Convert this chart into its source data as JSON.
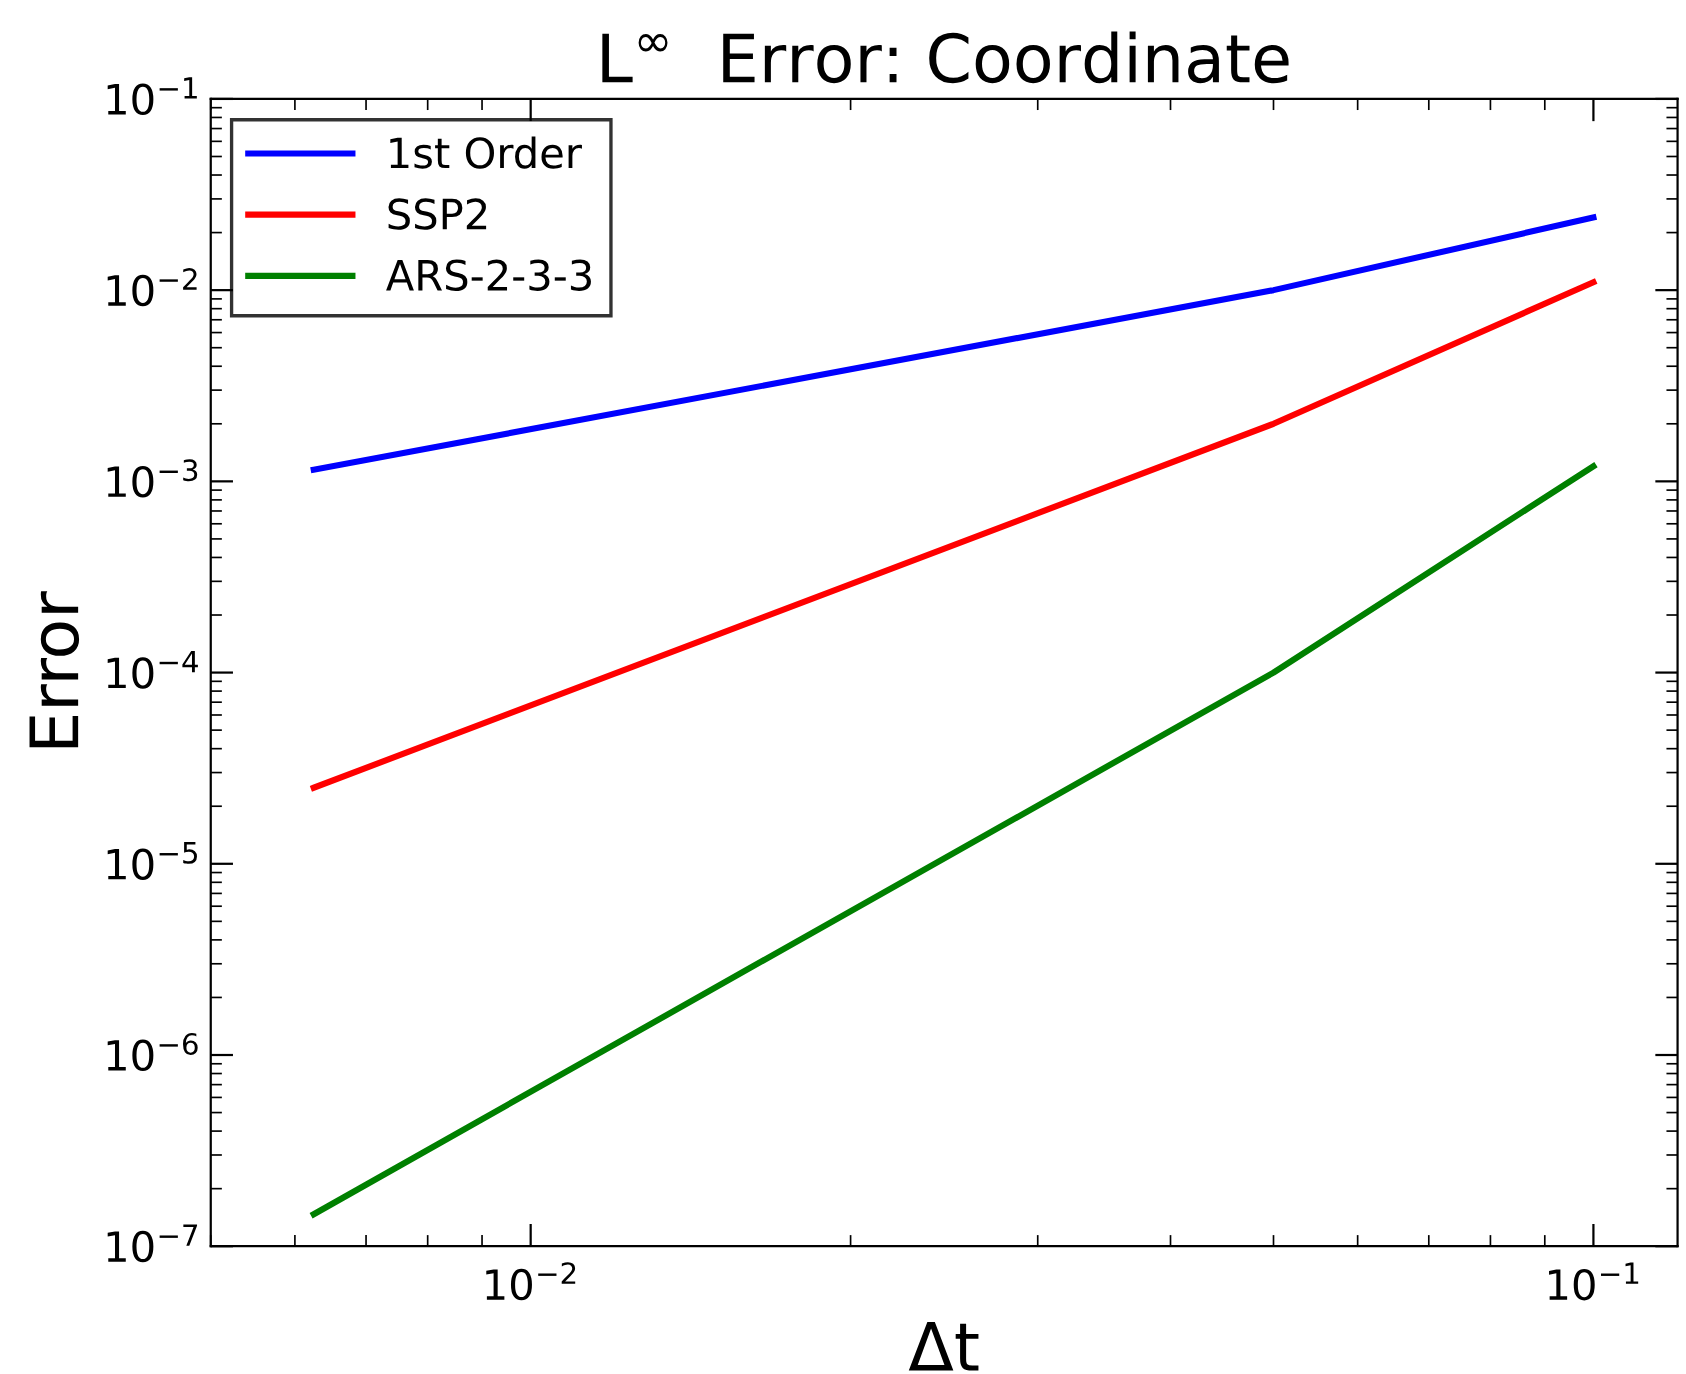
{
  "chart_data": {
    "type": "line",
    "title": "L$^{∞}$  Error: Coordinate",
    "xlabel": "Δt",
    "ylabel": "Error",
    "log": "xy",
    "x": [
      0.00625,
      0.05,
      0.1
    ],
    "series": [
      {
        "name": "1st Order",
        "color": "#0000ff",
        "values": [
          0.00115,
          0.01,
          0.024
        ]
      },
      {
        "name": "SSP2",
        "color": "#ff0000",
        "values": [
          2.5e-05,
          0.002,
          0.011
        ]
      },
      {
        "name": "ARS-2-3-3",
        "color": "#008000",
        "values": [
          1.47e-07,
          0.0001,
          0.0012
        ]
      }
    ],
    "xlim": [
      0.005,
      0.12
    ],
    "xticks": [
      {
        "value": 0.01,
        "label": "10$^{−2}$"
      },
      {
        "value": 0.1,
        "label": "10$^{−1}$"
      }
    ],
    "ylim": [
      1e-07,
      0.1
    ],
    "yticks": [
      {
        "value": 1e-07,
        "label": "10$^{−7}$"
      },
      {
        "value": 1e-06,
        "label": "10$^{−6}$"
      },
      {
        "value": 1e-05,
        "label": "10$^{−5}$"
      },
      {
        "value": 0.0001,
        "label": "10$^{−4}$"
      },
      {
        "value": 0.001,
        "label": "10$^{−3}$"
      },
      {
        "value": 0.01,
        "label": "10$^{−2}$"
      },
      {
        "value": 0.1,
        "label": "10$^{−1}$"
      }
    ],
    "legend": "top left",
    "grid": false,
    "marker": "none",
    "line_style": "solid"
  }
}
